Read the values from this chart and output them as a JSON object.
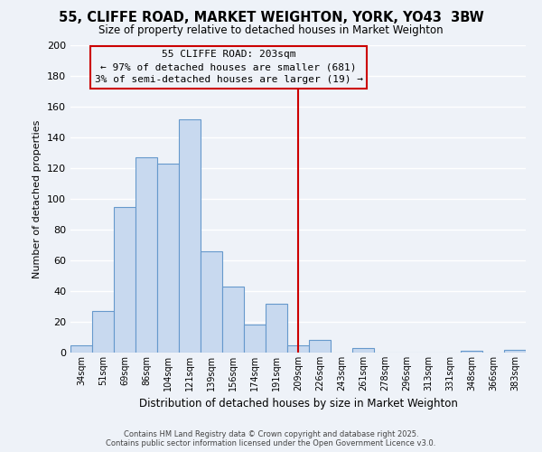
{
  "title": "55, CLIFFE ROAD, MARKET WEIGHTON, YORK, YO43  3BW",
  "subtitle": "Size of property relative to detached houses in Market Weighton",
  "xlabel": "Distribution of detached houses by size in Market Weighton",
  "ylabel": "Number of detached properties",
  "bar_labels": [
    "34sqm",
    "51sqm",
    "69sqm",
    "86sqm",
    "104sqm",
    "121sqm",
    "139sqm",
    "156sqm",
    "174sqm",
    "191sqm",
    "209sqm",
    "226sqm",
    "243sqm",
    "261sqm",
    "278sqm",
    "296sqm",
    "313sqm",
    "331sqm",
    "348sqm",
    "366sqm",
    "383sqm"
  ],
  "bar_values": [
    5,
    27,
    95,
    127,
    123,
    152,
    66,
    43,
    18,
    32,
    5,
    8,
    0,
    3,
    0,
    0,
    0,
    0,
    1,
    0,
    2
  ],
  "bar_color": "#c8d9ef",
  "bar_edge_color": "#6699cc",
  "vline_x_idx": 10,
  "vline_color": "#cc0000",
  "ylim": [
    0,
    200
  ],
  "yticks": [
    0,
    20,
    40,
    60,
    80,
    100,
    120,
    140,
    160,
    180,
    200
  ],
  "annotation_title": "55 CLIFFE ROAD: 203sqm",
  "annotation_line1": "← 97% of detached houses are smaller (681)",
  "annotation_line2": "3% of semi-detached houses are larger (19) →",
  "footer1": "Contains HM Land Registry data © Crown copyright and database right 2025.",
  "footer2": "Contains public sector information licensed under the Open Government Licence v3.0.",
  "background_color": "#eef2f8",
  "grid_color": "#ffffff"
}
